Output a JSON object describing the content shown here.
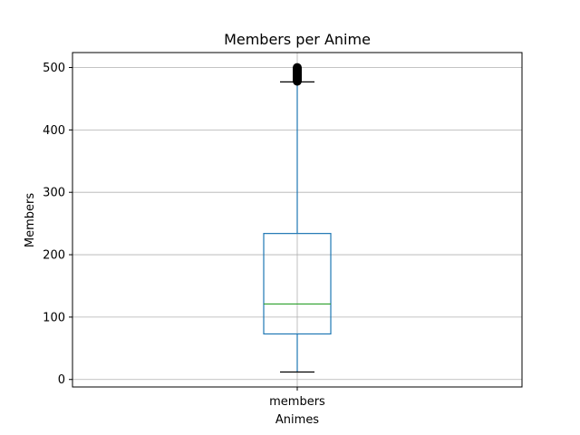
{
  "chart_data": {
    "type": "box",
    "title": "Members per Anime",
    "xlabel": "Animes",
    "ylabel": "Members",
    "categories": [
      "members"
    ],
    "boxes": [
      {
        "name": "members",
        "whisker_low": 12,
        "q1": 73,
        "median": 121,
        "q3": 234,
        "whisker_high": 477,
        "outliers": [
          478,
          479,
          480,
          481,
          482,
          483,
          484,
          485,
          486,
          487,
          488,
          489,
          490,
          491,
          492,
          493,
          494,
          495,
          496,
          497,
          498,
          499,
          500
        ]
      }
    ],
    "ylim": [
      -12,
      524
    ],
    "yticks": [
      0,
      100,
      200,
      300,
      400,
      500
    ],
    "grid": true,
    "colors": {
      "box": "#1f77b4",
      "whisker": "#1f77b4",
      "median": "#2ca02c",
      "caps": "#000000",
      "outliers": "#000000",
      "grid": "#b0b0b0"
    }
  }
}
